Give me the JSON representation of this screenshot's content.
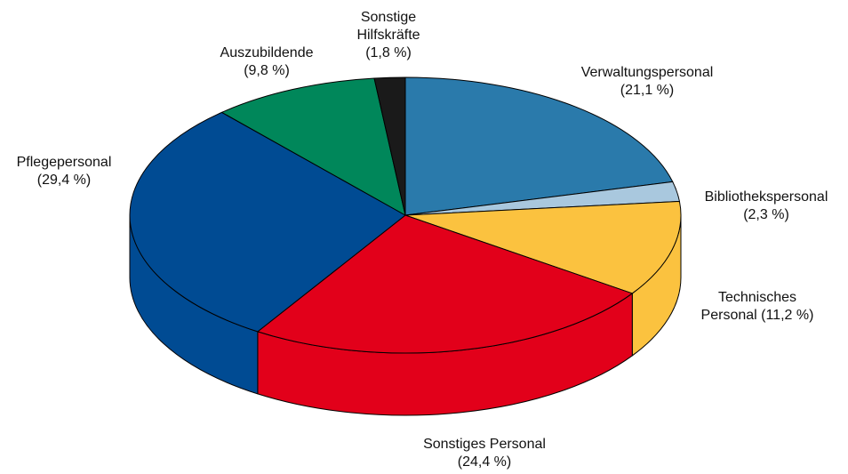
{
  "chart_data": {
    "type": "pie",
    "categories": [
      "Verwaltungspersonal",
      "Bibliothekspersonal",
      "Technisches Personal",
      "Sonstiges Personal",
      "Pflegepersonal",
      "Auszubildende",
      "Sonstige Hilfskräfte"
    ],
    "values": [
      21.1,
      2.3,
      11.2,
      24.4,
      29.4,
      9.8,
      1.8
    ],
    "value_labels": [
      "(21,1 %)",
      "(2,3 %)",
      "(11,2 %)",
      "(24,4 %)",
      "(29,4 %)",
      "(9,8 %)",
      "(1,8 %)"
    ],
    "colors": [
      "#2a7aab",
      "#a9c8de",
      "#fbc23f",
      "#e2001a",
      "#004b93",
      "#00875a",
      "#1a1a1a"
    ]
  }
}
